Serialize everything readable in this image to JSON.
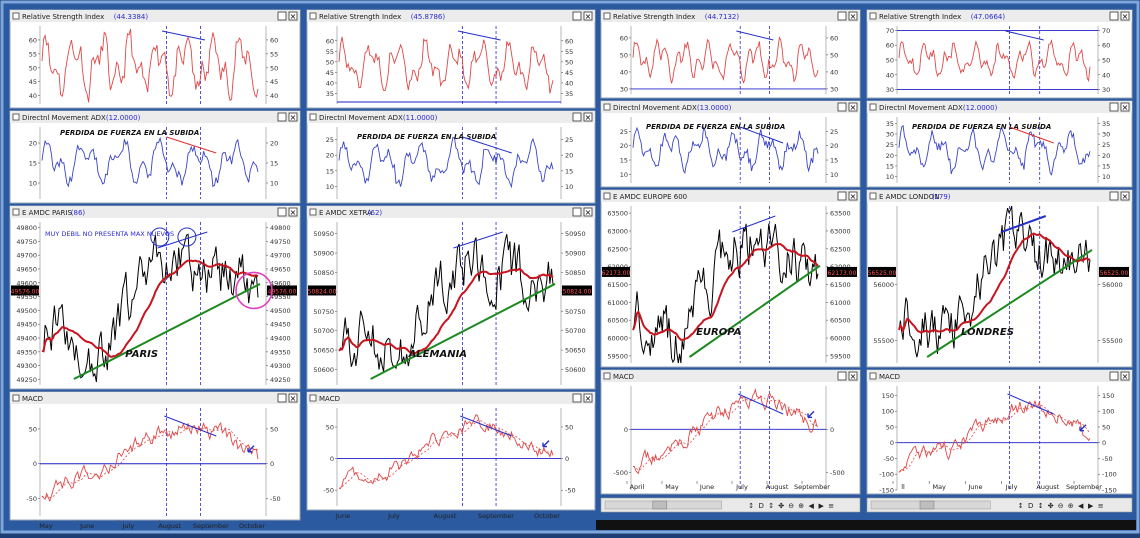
{
  "colors": {
    "rsi": "#e04848",
    "adx": "#3a44c8",
    "price": "#000000",
    "ma": "#c8141e",
    "trend": "#1c8a20",
    "trend_blue": "#2530c8",
    "hline": "#1c20c8",
    "vline": "#2b2bd0",
    "macd": "#e04848",
    "panel_bg": "#ffffff",
    "title_bar": "#ececec",
    "value_blue": "#2b2bd0",
    "highlight": "#e040c0",
    "price_label_bg": "#000000"
  },
  "chart_data": [
    {
      "type": "line",
      "market": "PARIS",
      "panels": {
        "rsi": {
          "title": "Relative Strength Index",
          "value": "(44.3384)",
          "ticks": [
            "60",
            "55",
            "50",
            "45",
            "40"
          ],
          "ylim": [
            37,
            65
          ]
        },
        "adx": {
          "title": "Directnl Movement ADX",
          "value": "(12.0000)",
          "ticks": [
            "20",
            "15",
            "10"
          ],
          "ylim": [
            6,
            24
          ],
          "annotation": "PERDIDA DE FUERZA EN LA SUBIDA"
        },
        "price": {
          "title": "E AMDC PARIS",
          "value": "(86)",
          "ticks": [
            "49800",
            "49750",
            "49700",
            "49650",
            "49600",
            "49550",
            "49500",
            "49450",
            "49400",
            "49350",
            "49300",
            "49250"
          ],
          "ylim": [
            49230,
            49820
          ],
          "last_label": "49576.00",
          "annotation": "MUY DEBIL NO PRESENTA MAX NUEVOS",
          "label": "PARIS"
        },
        "macd": {
          "title": "MACD",
          "ticks": [
            "50",
            "0",
            "-50"
          ],
          "ylim": [
            -75,
            80
          ]
        }
      },
      "x_labels": [
        "May",
        "June",
        "July",
        "August",
        "September",
        "October"
      ]
    },
    {
      "type": "line",
      "market": "ALEMANIA",
      "panels": {
        "rsi": {
          "title": "Relative Strength Index",
          "value": "(45.8786)",
          "ticks": [
            "60",
            "55",
            "50",
            "45",
            "40",
            "35"
          ],
          "ylim": [
            30,
            67
          ]
        },
        "adx": {
          "title": "Directnl Movement ADX",
          "value": "(11.0000)",
          "ticks": [
            "25",
            "20",
            "15",
            "10"
          ],
          "ylim": [
            6,
            29
          ],
          "annotation": "PERDIDA DE FUERZA EN LA SUBIDA"
        },
        "price": {
          "title": "E AMDC XETRA",
          "value": "(62)",
          "ticks": [
            "50950",
            "50900",
            "50850",
            "50800",
            "50750",
            "50700",
            "50650",
            "50600"
          ],
          "ylim": [
            50560,
            50980
          ],
          "last_label": "50824.00",
          "label": "ALEMANIA"
        },
        "macd": {
          "title": "MACD",
          "ticks": [
            "50",
            "0",
            "-50"
          ],
          "ylim": [
            -75,
            80
          ]
        }
      },
      "x_labels": [
        "June",
        "July",
        "August",
        "September",
        "October"
      ]
    },
    {
      "type": "line",
      "market": "EUROPA",
      "panels": {
        "rsi": {
          "title": "Relative Strength Index",
          "value": "(44.7132)",
          "ticks": [
            "60",
            "50",
            "40",
            "30"
          ],
          "ylim": [
            27,
            67
          ]
        },
        "adx": {
          "title": "Directnl Movement ADX",
          "value": "(13.0000)",
          "ticks": [
            "25",
            "20",
            "15",
            "10"
          ],
          "ylim": [
            7,
            30
          ],
          "annotation": "PERDIDA DE FUERZA EN LA SUBIDA"
        },
        "price": {
          "title": "E AMDC EUROPE 600",
          "value": "",
          "ticks": [
            "63500",
            "63000",
            "62500",
            "62000",
            "61500",
            "61000",
            "60500",
            "60000",
            "59500"
          ],
          "ylim": [
            59300,
            63700
          ],
          "last_label": "62173.00",
          "label": "EUROPA"
        },
        "macd": {
          "title": "MACD",
          "ticks": [
            "0",
            "-500"
          ],
          "ylim": [
            -700,
            500
          ]
        }
      },
      "x_labels": [
        "April",
        "May",
        "June",
        "July",
        "August",
        "September"
      ]
    },
    {
      "type": "line",
      "market": "LONDRES",
      "panels": {
        "rsi": {
          "title": "Relative Strength Index",
          "value": "(47.0664)",
          "ticks": [
            "70",
            "60",
            "50",
            "40",
            "30"
          ],
          "ylim": [
            27,
            73
          ]
        },
        "adx": {
          "title": "Directnl Movement ADX",
          "value": "(12.0000)",
          "ticks": [
            "35",
            "30",
            "25",
            "20",
            "15",
            "10"
          ],
          "ylim": [
            7,
            38
          ],
          "annotation": "PERDIDA DE FUERZA EN LA SUBIDA"
        },
        "price": {
          "title": "E AMDC LONDON",
          "value": "(179)",
          "ticks": [
            "56000",
            "55500"
          ],
          "ylim": [
            55300,
            56700
          ],
          "last_label": "56525.00",
          "label": "LONDRES"
        },
        "macd": {
          "title": "MACD",
          "ticks": [
            "150",
            "100",
            "50",
            "0",
            "-50",
            "-100",
            "-150"
          ],
          "ylim": [
            -150,
            180
          ]
        }
      },
      "x_labels": [
        "ll",
        "May",
        "June",
        "July",
        "August",
        "September"
      ]
    }
  ],
  "toolbar": {
    "buttons": [
      "↕",
      "D",
      "↕",
      "✤",
      "⊖",
      "⊕",
      "◀",
      "▶",
      "≡"
    ]
  }
}
